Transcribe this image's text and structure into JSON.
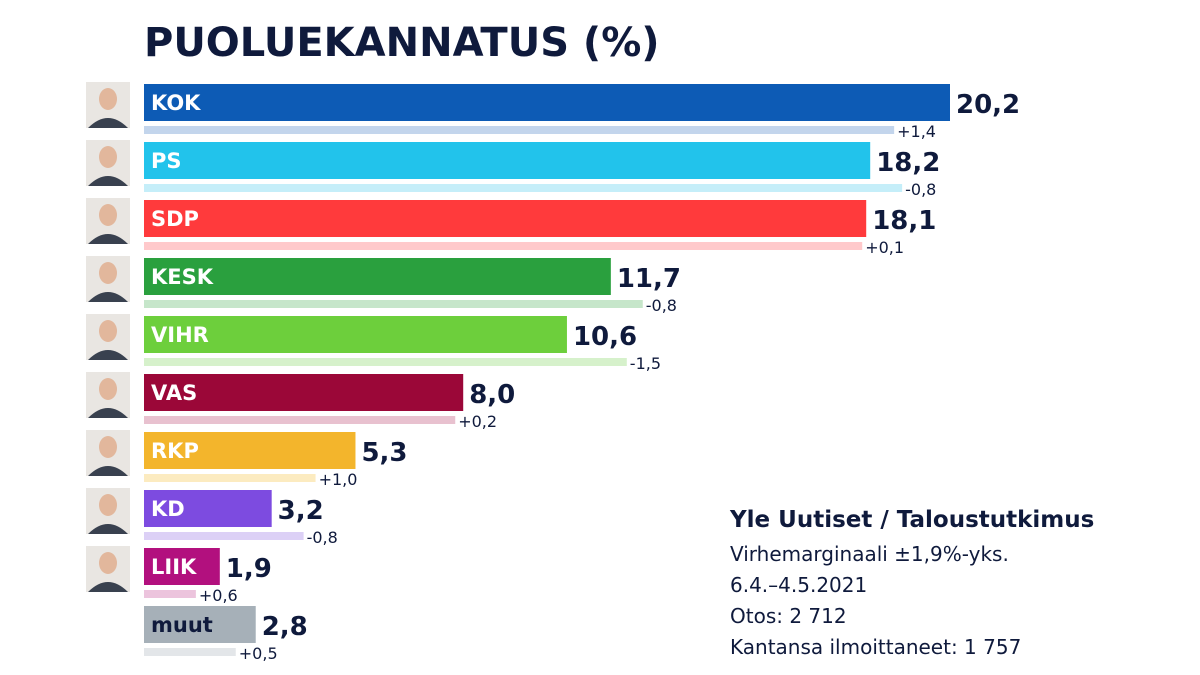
{
  "title": "PUOLUEKANNATUS (%)",
  "chart_data": {
    "type": "bar",
    "orientation": "horizontal",
    "title": "PUOLUEKANNATUS (%)",
    "categories": [
      "KOK",
      "PS",
      "SDP",
      "KESK",
      "VIHR",
      "VAS",
      "RKP",
      "KD",
      "LIIK",
      "muut"
    ],
    "values": [
      20.2,
      18.2,
      18.1,
      11.7,
      10.6,
      8.0,
      5.3,
      3.2,
      1.9,
      2.8
    ],
    "value_labels": [
      "20,2",
      "18,2",
      "18,1",
      "11,7",
      "10,6",
      "8,0",
      "5,3",
      "3,2",
      "1,9",
      "2,8"
    ],
    "change_values": [
      1.4,
      -0.8,
      0.1,
      -0.8,
      -1.5,
      0.2,
      1.0,
      -0.8,
      0.6,
      0.5
    ],
    "change_labels": [
      "+1,4",
      "-0,8",
      "+0,1",
      "-0,8",
      "-1,5",
      "+0,2",
      "+1,0",
      "-0,8",
      "+0,6",
      "+0,5"
    ],
    "previous_values": [
      18.8,
      19.0,
      18.0,
      12.5,
      12.1,
      7.8,
      4.3,
      4.0,
      1.3,
      2.3
    ],
    "colors": [
      "#0d5bb5",
      "#22c3eb",
      "#ff3a3c",
      "#2aa03e",
      "#6dcf3c",
      "#9b0738",
      "#f3b52c",
      "#7d4be0",
      "#b2107e",
      "#a6b0b8"
    ],
    "light_colors": [
      "#c3d5ec",
      "#c5eef9",
      "#ffc9cb",
      "#c6e6ca",
      "#d6f1cb",
      "#e8c1cf",
      "#fcebc0",
      "#dcd0f6",
      "#ecc4dd",
      "#e3e6e9"
    ],
    "portraits": [
      true,
      true,
      true,
      true,
      true,
      true,
      true,
      true,
      true,
      false
    ],
    "xlim": [
      0,
      20.2
    ],
    "grid": false,
    "legend": "none"
  },
  "source": {
    "title": "Yle Uutiset / Taloustutkimus",
    "lines": [
      "Virhemarginaali ±1,9%-yks.",
      "6.4.–4.5.2021",
      "Otos: 2 712",
      "Kantansa ilmoittaneet: 1 757"
    ]
  }
}
